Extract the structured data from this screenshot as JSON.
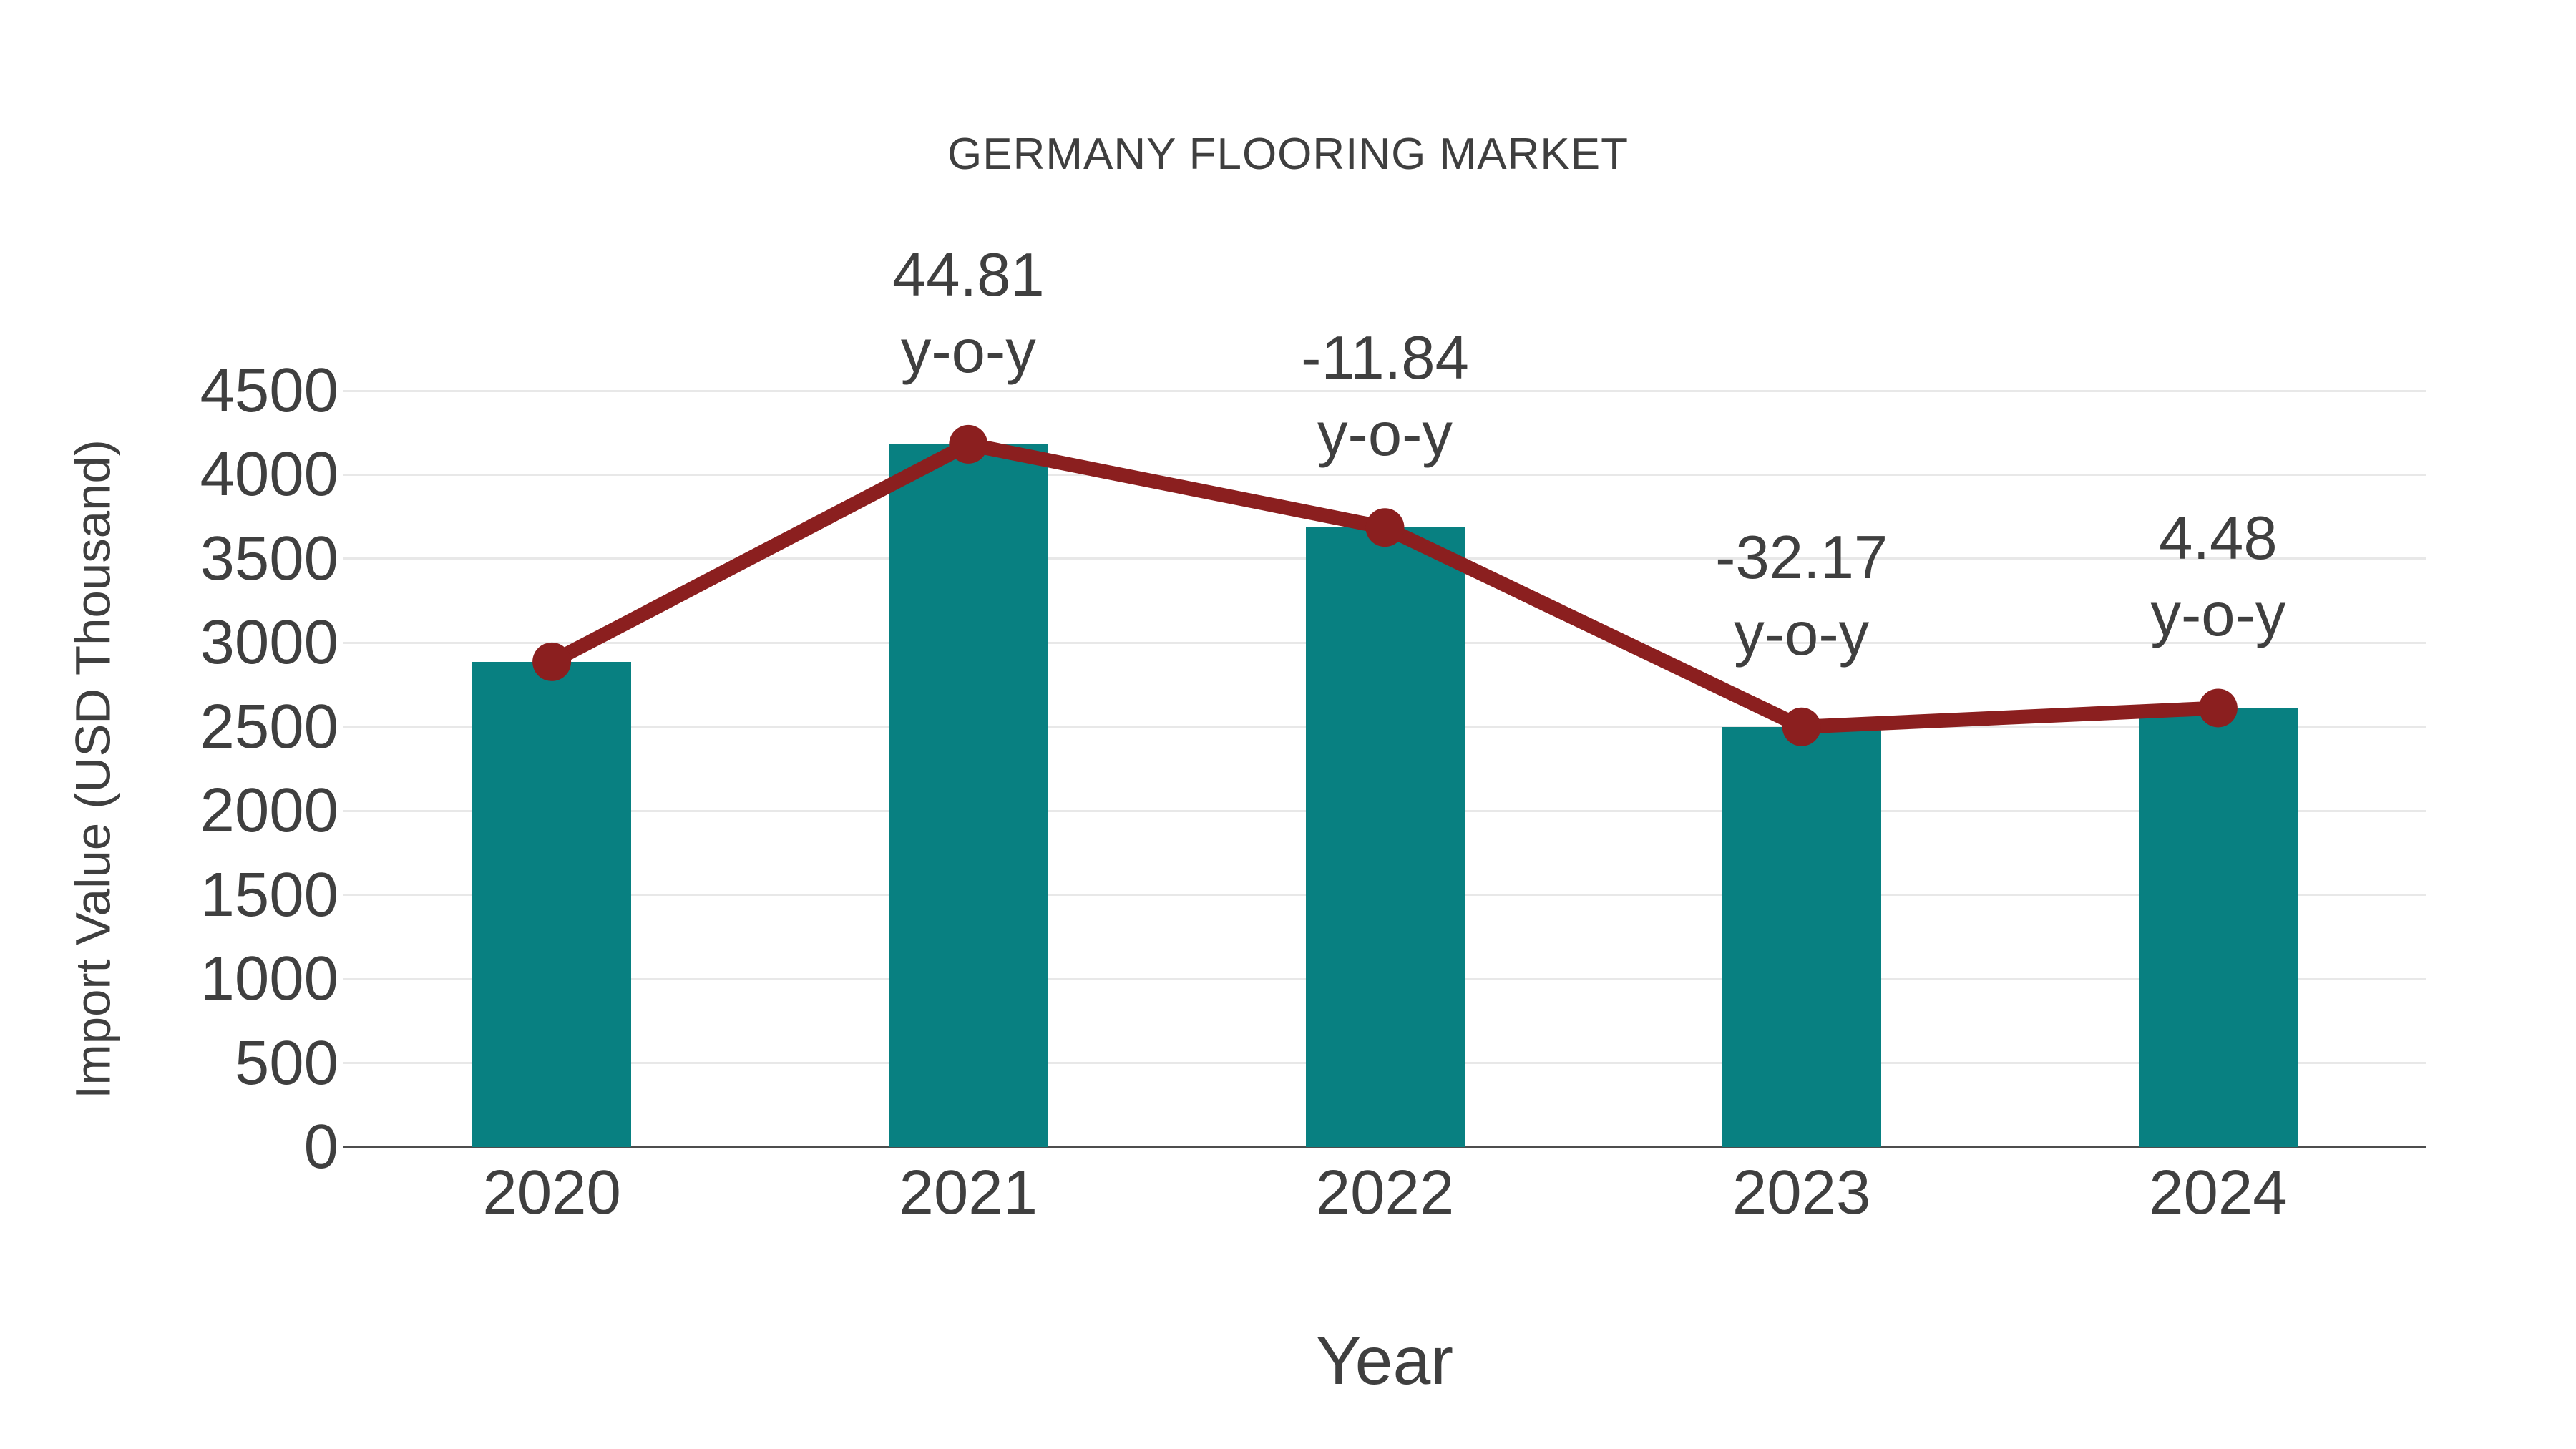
{
  "chart_data": {
    "type": "bar",
    "title": "GERMANY FLOORING MARKET",
    "xlabel": "Year",
    "ylabel": "Import Value (USD Thousand)",
    "categories": [
      "2020",
      "2021",
      "2022",
      "2023",
      "2024"
    ],
    "series": [
      {
        "name": "Import Value",
        "type": "bar",
        "color": "#088081",
        "values": [
          2887,
          4181,
          3686,
          2500,
          2612
        ]
      },
      {
        "name": "Trend",
        "type": "line",
        "color": "#8b1f1f",
        "values": [
          2887,
          4181,
          3686,
          2500,
          2612
        ]
      }
    ],
    "annotations": [
      {
        "category": "2021",
        "line1": "44.81",
        "line2": "y-o-y"
      },
      {
        "category": "2022",
        "line1": "-11.84",
        "line2": "y-o-y"
      },
      {
        "category": "2023",
        "line1": "-32.17",
        "line2": "y-o-y"
      },
      {
        "category": "2024",
        "line1": "4.48",
        "line2": "y-o-y"
      }
    ],
    "ylim": [
      0,
      4500
    ],
    "yticks": [
      0,
      500,
      1000,
      1500,
      2000,
      2500,
      3000,
      3500,
      4000,
      4500
    ],
    "grid": true,
    "legend": "none",
    "colors": {
      "bar": "#088081",
      "line": "#8b1f1f",
      "marker": "#8b1f1f",
      "text": "#3f3f3f",
      "gridline": "#e8e8e8",
      "axis": "#4d4d4d",
      "background": "#ffffff"
    }
  }
}
